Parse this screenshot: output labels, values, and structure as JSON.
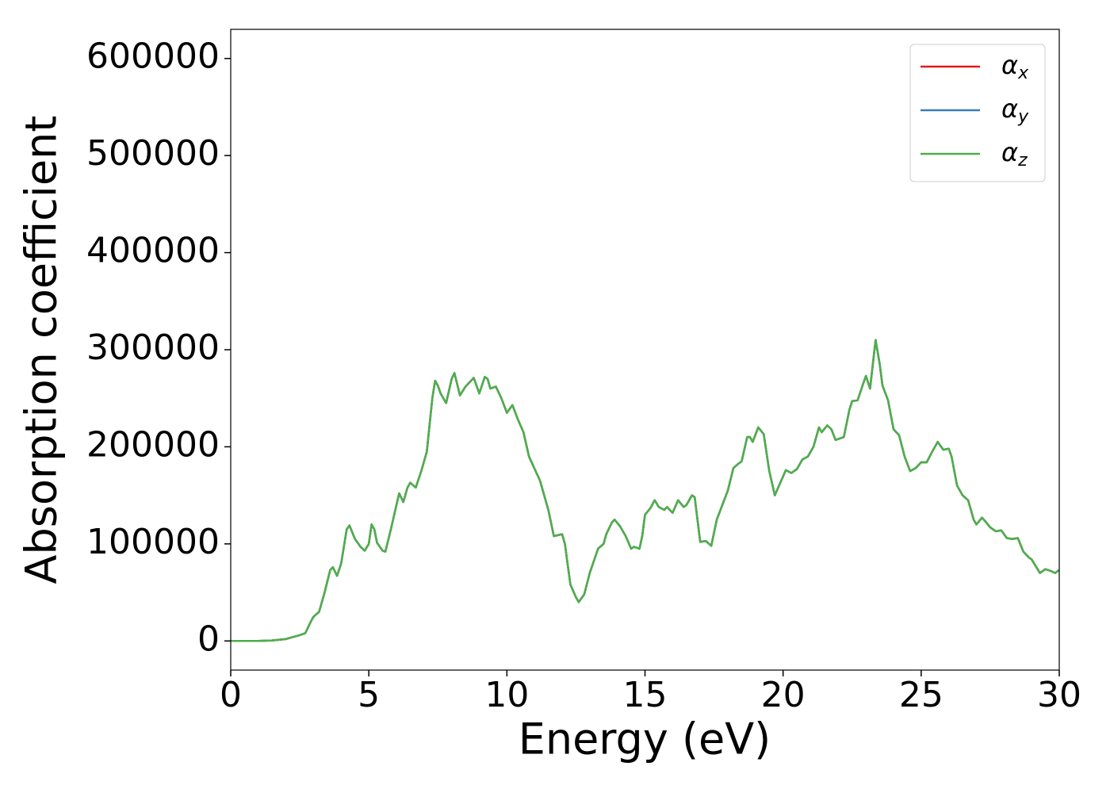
{
  "chart_data": {
    "type": "line",
    "xlabel": "Energy (eV)",
    "ylabel": "Absorption coefficient",
    "x": [
      0,
      1,
      1.5,
      2,
      2.5,
      2.7,
      2.9,
      3.0,
      3.2,
      3.4,
      3.6,
      3.7,
      3.85,
      4.0,
      4.2,
      4.3,
      4.5,
      4.7,
      4.85,
      5.0,
      5.1,
      5.2,
      5.3,
      5.5,
      5.6,
      5.8,
      6.0,
      6.1,
      6.25,
      6.4,
      6.5,
      6.7,
      6.9,
      7.1,
      7.3,
      7.4,
      7.5,
      7.6,
      7.8,
      8.0,
      8.1,
      8.3,
      8.5,
      8.7,
      8.8,
      9.0,
      9.2,
      9.3,
      9.4,
      9.6,
      9.8,
      10.0,
      10.2,
      10.4,
      10.6,
      10.8,
      11.2,
      11.5,
      11.7,
      12.0,
      12.1,
      12.3,
      12.5,
      12.6,
      12.8,
      13.0,
      13.3,
      13.5,
      13.6,
      13.8,
      13.9,
      14.1,
      14.3,
      14.5,
      14.6,
      14.8,
      14.9,
      15.0,
      15.2,
      15.35,
      15.5,
      15.7,
      15.8,
      16.0,
      16.2,
      16.4,
      16.5,
      16.7,
      16.8,
      17.0,
      17.2,
      17.4,
      17.6,
      17.8,
      18.0,
      18.2,
      18.4,
      18.5,
      18.7,
      18.8,
      18.9,
      19.1,
      19.3,
      19.5,
      19.7,
      19.9,
      20.1,
      20.3,
      20.5,
      20.7,
      20.9,
      21.1,
      21.3,
      21.4,
      21.6,
      21.75,
      21.9,
      22.2,
      22.4,
      22.5,
      22.7,
      22.9,
      23.0,
      23.15,
      23.35,
      23.5,
      23.6,
      23.8,
      24.0,
      24.2,
      24.4,
      24.6,
      24.8,
      25.0,
      25.2,
      25.4,
      25.6,
      25.8,
      26.0,
      26.1,
      26.3,
      26.5,
      26.7,
      26.9,
      27.0,
      27.2,
      27.3,
      27.5,
      27.7,
      27.9,
      28.1,
      28.3,
      28.5,
      28.7,
      28.9,
      29.0,
      29.3,
      29.5,
      29.7,
      29.85,
      30
    ],
    "series": [
      {
        "name": "αx",
        "color": "#e41a1c",
        "values": [
          0,
          0,
          500,
          2000,
          6000,
          8000,
          20000,
          25000,
          30000,
          50000,
          73000,
          76000,
          67000,
          80000,
          115000,
          119000,
          105000,
          97000,
          93000,
          100000,
          120000,
          115000,
          101000,
          93000,
          92000,
          115000,
          140000,
          152000,
          143000,
          158000,
          163000,
          158000,
          175000,
          195000,
          250000,
          268000,
          263000,
          255000,
          245000,
          270000,
          276000,
          253000,
          262000,
          268000,
          271000,
          255000,
          272000,
          270000,
          260000,
          262000,
          250000,
          235000,
          243000,
          228000,
          215000,
          190000,
          165000,
          135000,
          108000,
          110000,
          100000,
          58000,
          45000,
          40000,
          48000,
          70000,
          95000,
          100000,
          110000,
          122000,
          125000,
          118000,
          108000,
          95000,
          97000,
          95000,
          108000,
          130000,
          137000,
          145000,
          138000,
          135000,
          138000,
          132000,
          145000,
          138000,
          140000,
          150000,
          148000,
          102000,
          103000,
          98000,
          125000,
          140000,
          155000,
          178000,
          183000,
          185000,
          210000,
          210000,
          205000,
          220000,
          213000,
          175000,
          150000,
          163000,
          176000,
          173000,
          177000,
          187000,
          190000,
          200000,
          220000,
          215000,
          222000,
          218000,
          207000,
          210000,
          238000,
          247000,
          248000,
          265000,
          273000,
          260000,
          310000,
          285000,
          263000,
          248000,
          218000,
          212000,
          190000,
          175000,
          178000,
          184000,
          184000,
          195000,
          205000,
          197000,
          198000,
          190000,
          160000,
          150000,
          145000,
          125000,
          120000,
          127000,
          124000,
          117000,
          113000,
          114000,
          106000,
          105000,
          106000,
          92000,
          86000,
          84000,
          70000,
          74000,
          72000,
          70000,
          73000
        ]
      },
      {
        "name": "αy",
        "color": "#377eb8",
        "values": [
          0,
          0,
          500,
          2000,
          6000,
          8000,
          20000,
          25000,
          30000,
          50000,
          73000,
          76000,
          67000,
          80000,
          115000,
          119000,
          105000,
          97000,
          93000,
          100000,
          120000,
          115000,
          101000,
          93000,
          92000,
          115000,
          140000,
          152000,
          143000,
          158000,
          163000,
          158000,
          175000,
          195000,
          250000,
          268000,
          263000,
          255000,
          245000,
          270000,
          276000,
          253000,
          262000,
          268000,
          271000,
          255000,
          272000,
          270000,
          260000,
          262000,
          250000,
          235000,
          243000,
          228000,
          215000,
          190000,
          165000,
          135000,
          108000,
          110000,
          100000,
          58000,
          45000,
          40000,
          48000,
          70000,
          95000,
          100000,
          110000,
          122000,
          125000,
          118000,
          108000,
          95000,
          97000,
          95000,
          108000,
          130000,
          137000,
          145000,
          138000,
          135000,
          138000,
          132000,
          145000,
          138000,
          140000,
          150000,
          148000,
          102000,
          103000,
          98000,
          125000,
          140000,
          155000,
          178000,
          183000,
          185000,
          210000,
          210000,
          205000,
          220000,
          213000,
          175000,
          150000,
          163000,
          176000,
          173000,
          177000,
          187000,
          190000,
          200000,
          220000,
          215000,
          222000,
          218000,
          207000,
          210000,
          238000,
          247000,
          248000,
          265000,
          273000,
          260000,
          310000,
          285000,
          263000,
          248000,
          218000,
          212000,
          190000,
          175000,
          178000,
          184000,
          184000,
          195000,
          205000,
          197000,
          198000,
          190000,
          160000,
          150000,
          145000,
          125000,
          120000,
          127000,
          124000,
          117000,
          113000,
          114000,
          106000,
          105000,
          106000,
          92000,
          86000,
          84000,
          70000,
          74000,
          72000,
          70000,
          73000
        ]
      },
      {
        "name": "αz",
        "color": "#4daf4a",
        "values": [
          0,
          0,
          500,
          2000,
          6000,
          8000,
          20000,
          25000,
          30000,
          50000,
          73000,
          76000,
          67000,
          80000,
          115000,
          119000,
          105000,
          97000,
          93000,
          100000,
          120000,
          115000,
          101000,
          93000,
          92000,
          115000,
          140000,
          152000,
          143000,
          158000,
          163000,
          158000,
          175000,
          195000,
          250000,
          268000,
          263000,
          255000,
          245000,
          270000,
          276000,
          253000,
          262000,
          268000,
          271000,
          255000,
          272000,
          270000,
          260000,
          262000,
          250000,
          235000,
          243000,
          228000,
          215000,
          190000,
          165000,
          135000,
          108000,
          110000,
          100000,
          58000,
          45000,
          40000,
          48000,
          70000,
          95000,
          100000,
          110000,
          122000,
          125000,
          118000,
          108000,
          95000,
          97000,
          95000,
          108000,
          130000,
          137000,
          145000,
          138000,
          135000,
          138000,
          132000,
          145000,
          138000,
          140000,
          150000,
          148000,
          102000,
          103000,
          98000,
          125000,
          140000,
          155000,
          178000,
          183000,
          185000,
          210000,
          210000,
          205000,
          220000,
          213000,
          175000,
          150000,
          163000,
          176000,
          173000,
          177000,
          187000,
          190000,
          200000,
          220000,
          215000,
          222000,
          218000,
          207000,
          210000,
          238000,
          247000,
          248000,
          265000,
          273000,
          260000,
          310000,
          285000,
          263000,
          248000,
          218000,
          212000,
          190000,
          175000,
          178000,
          184000,
          184000,
          195000,
          205000,
          197000,
          198000,
          190000,
          160000,
          150000,
          145000,
          125000,
          120000,
          127000,
          124000,
          117000,
          113000,
          114000,
          106000,
          105000,
          106000,
          92000,
          86000,
          84000,
          70000,
          74000,
          72000,
          70000,
          73000
        ]
      }
    ],
    "xlim": [
      0,
      30
    ],
    "xticks": [
      0,
      5,
      10,
      15,
      20,
      25,
      30
    ],
    "ylim": [
      -30000,
      630000
    ],
    "yticks": [
      0,
      100000,
      200000,
      300000,
      400000,
      500000,
      600000
    ],
    "grid": false,
    "legend": "upper right"
  }
}
